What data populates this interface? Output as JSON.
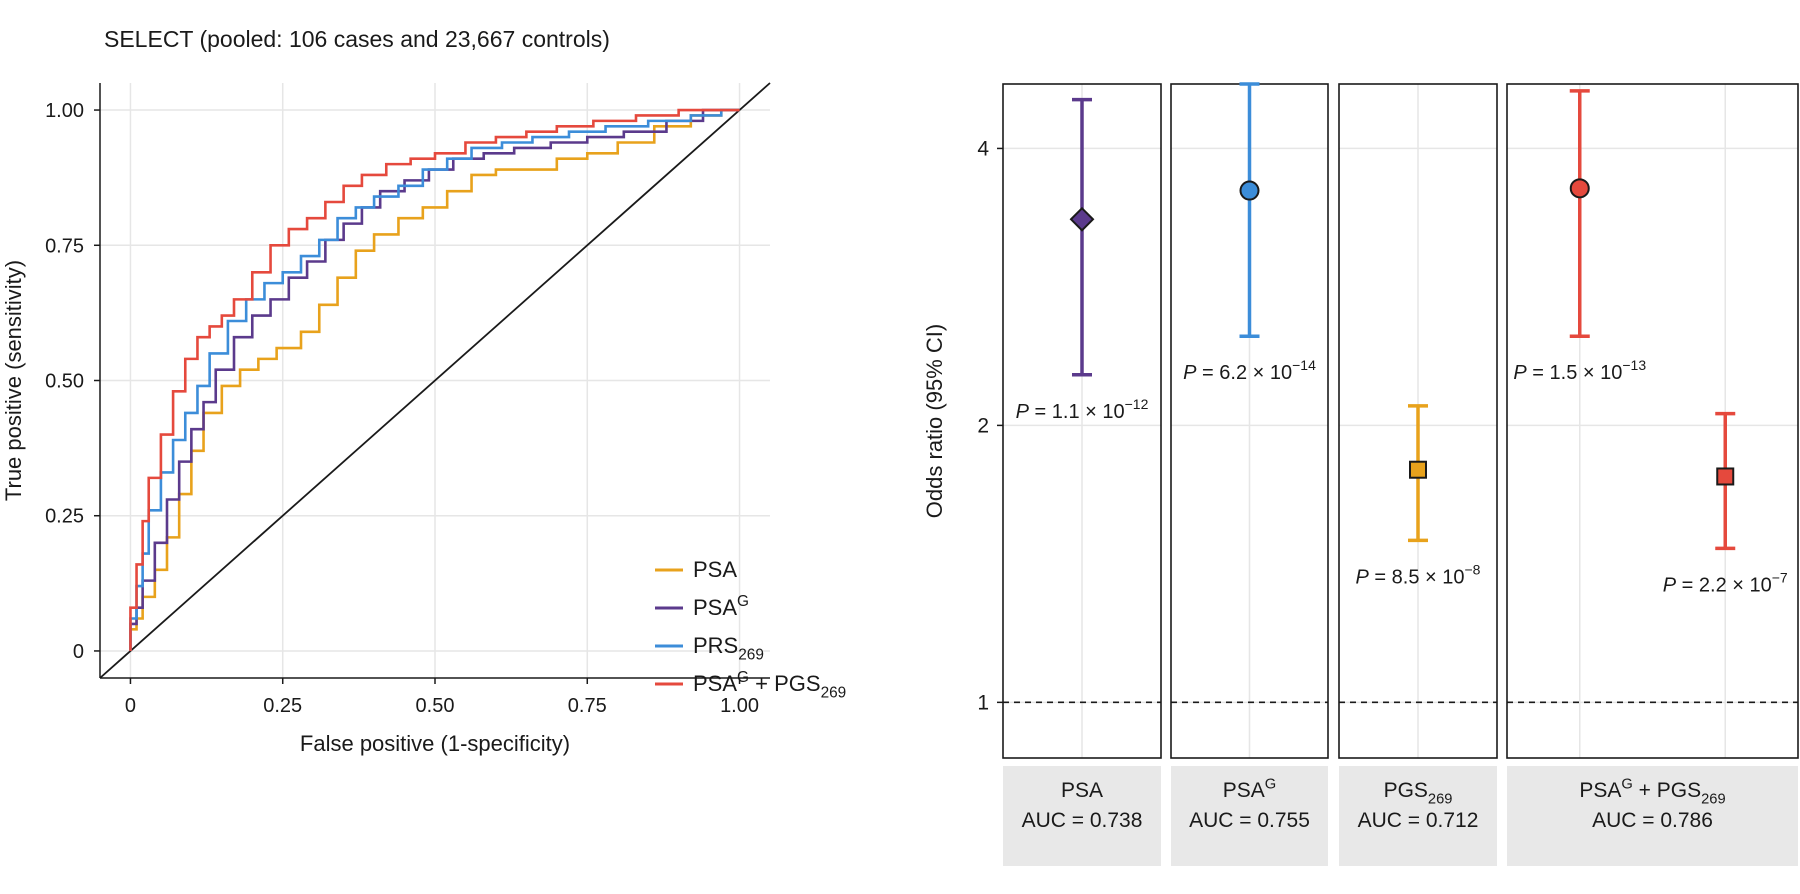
{
  "chart_data": [
    {
      "type": "line",
      "subtype": "roc",
      "title": "SELECT (pooled: 106 cases and 23,667 controls)",
      "xlabel": "False positive (1-specificity)",
      "ylabel": "True positive (sensitivity)",
      "xlim": [
        -0.05,
        1.05
      ],
      "ylim": [
        -0.05,
        1.05
      ],
      "xticks": [
        0,
        0.25,
        0.5,
        0.75,
        1.0
      ],
      "xtick_labels": [
        "0",
        "0.25",
        "0.50",
        "0.75",
        "1.00"
      ],
      "yticks": [
        0,
        0.25,
        0.5,
        0.75,
        1.0
      ],
      "ytick_labels": [
        "0",
        "0.25",
        "0.50",
        "0.75",
        "1.00"
      ],
      "grid": true,
      "legend_position": "bottom-right",
      "reference_line": {
        "x": [
          -0.05,
          1.05
        ],
        "y": [
          -0.05,
          1.05
        ],
        "color": "#1a1a1a"
      },
      "series": [
        {
          "name": "PSA",
          "label_base": "PSA",
          "label_sup": "",
          "label_sub": "",
          "label_tail": "",
          "color": "#E8A21C",
          "x": [
            0.0,
            0.01,
            0.02,
            0.04,
            0.06,
            0.08,
            0.1,
            0.12,
            0.15,
            0.18,
            0.21,
            0.24,
            0.28,
            0.31,
            0.34,
            0.37,
            0.4,
            0.44,
            0.48,
            0.52,
            0.56,
            0.6,
            0.65,
            0.7,
            0.75,
            0.8,
            0.86,
            0.92,
            0.97,
            1.0
          ],
          "y": [
            0.0,
            0.04,
            0.06,
            0.1,
            0.15,
            0.21,
            0.29,
            0.37,
            0.44,
            0.49,
            0.52,
            0.54,
            0.56,
            0.59,
            0.64,
            0.69,
            0.74,
            0.77,
            0.8,
            0.82,
            0.85,
            0.88,
            0.89,
            0.89,
            0.91,
            0.92,
            0.94,
            0.97,
            0.99,
            1.0
          ]
        },
        {
          "name": "PSAG",
          "label_base": "PSA",
          "label_sup": "G",
          "label_sub": "",
          "label_tail": "",
          "color": "#5B3A8C",
          "x": [
            0.0,
            0.01,
            0.02,
            0.04,
            0.06,
            0.08,
            0.1,
            0.12,
            0.14,
            0.17,
            0.2,
            0.23,
            0.26,
            0.29,
            0.32,
            0.35,
            0.38,
            0.41,
            0.45,
            0.49,
            0.53,
            0.58,
            0.63,
            0.69,
            0.75,
            0.81,
            0.88,
            0.94,
            1.0
          ],
          "y": [
            0.0,
            0.05,
            0.08,
            0.13,
            0.2,
            0.28,
            0.35,
            0.41,
            0.46,
            0.52,
            0.58,
            0.62,
            0.65,
            0.69,
            0.72,
            0.76,
            0.79,
            0.82,
            0.85,
            0.87,
            0.89,
            0.91,
            0.92,
            0.93,
            0.94,
            0.95,
            0.96,
            0.98,
            1.0
          ]
        },
        {
          "name": "PRS269",
          "label_base": "PRS",
          "label_sup": "",
          "label_sub": "269",
          "label_tail": "",
          "color": "#3C8DD9",
          "x": [
            0.0,
            0.01,
            0.02,
            0.03,
            0.05,
            0.07,
            0.09,
            0.11,
            0.13,
            0.16,
            0.19,
            0.22,
            0.25,
            0.28,
            0.31,
            0.34,
            0.37,
            0.4,
            0.44,
            0.48,
            0.52,
            0.56,
            0.61,
            0.66,
            0.72,
            0.78,
            0.85,
            0.92,
            0.97,
            1.0
          ],
          "y": [
            0.0,
            0.06,
            0.12,
            0.18,
            0.26,
            0.33,
            0.39,
            0.44,
            0.49,
            0.55,
            0.61,
            0.65,
            0.68,
            0.7,
            0.73,
            0.76,
            0.8,
            0.82,
            0.84,
            0.86,
            0.89,
            0.91,
            0.93,
            0.94,
            0.95,
            0.96,
            0.97,
            0.98,
            0.99,
            1.0
          ]
        },
        {
          "name": "PSAG + PGS269",
          "label_base": "PSA",
          "label_sup": "G",
          "label_sub": "",
          "label_tail": " + PGS",
          "label_tail_sub": "269",
          "color": "#E5493D",
          "x": [
            0.0,
            0.01,
            0.02,
            0.03,
            0.05,
            0.07,
            0.09,
            0.11,
            0.13,
            0.15,
            0.17,
            0.2,
            0.23,
            0.26,
            0.29,
            0.32,
            0.35,
            0.38,
            0.42,
            0.46,
            0.5,
            0.55,
            0.6,
            0.65,
            0.7,
            0.76,
            0.83,
            0.9,
            0.96,
            1.0
          ],
          "y": [
            0.0,
            0.08,
            0.16,
            0.24,
            0.32,
            0.4,
            0.48,
            0.54,
            0.58,
            0.6,
            0.62,
            0.65,
            0.7,
            0.75,
            0.78,
            0.8,
            0.83,
            0.86,
            0.88,
            0.9,
            0.91,
            0.92,
            0.94,
            0.95,
            0.96,
            0.97,
            0.98,
            0.99,
            1.0,
            1.0
          ]
        }
      ]
    },
    {
      "type": "forest",
      "ylabel": "Odds ratio (95% CI)",
      "yscale": "log2",
      "ylim": [
        0.87,
        4.7
      ],
      "yticks": [
        1,
        2,
        4
      ],
      "ytick_labels": [
        "1",
        "2",
        "4"
      ],
      "reference_line": {
        "value": 1,
        "style": "dashed"
      },
      "panels": [
        {
          "name": "PSA",
          "label_base": "PSA",
          "label_sup": "",
          "label_sub": "",
          "label_tail": "",
          "auc": "AUC = 0.738",
          "estimates": [
            {
              "or": 3.35,
              "lower": 2.27,
              "upper": 4.52,
              "color": "#5B3A8C",
              "marker": "diamond",
              "p_coef": "1.1",
              "p_exp": "−12",
              "x_offset": 0
            }
          ]
        },
        {
          "name": "PSAG",
          "label_base": "PSA",
          "label_sup": "G",
          "label_sub": "",
          "label_tail": "",
          "auc": "AUC = 0.755",
          "estimates": [
            {
              "or": 3.6,
              "lower": 2.5,
              "upper": 4.7,
              "color": "#3C8DD9",
              "marker": "circle",
              "p_coef": "6.2",
              "p_exp": "−14",
              "x_offset": 0
            }
          ]
        },
        {
          "name": "PGS269",
          "label_base": "PGS",
          "label_sup": "",
          "label_sub": "269",
          "label_tail": "",
          "auc": "AUC = 0.712",
          "estimates": [
            {
              "or": 1.79,
              "lower": 1.5,
              "upper": 2.1,
              "color": "#E8A21C",
              "marker": "square",
              "p_coef": "8.5",
              "p_exp": "−8",
              "x_offset": 0
            }
          ]
        },
        {
          "name": "PSAG + PGS269",
          "label_base": "PSA",
          "label_sup": "G",
          "label_sub": "",
          "label_tail": " + PGS",
          "label_tail_sub": "269",
          "auc": "AUC = 0.786",
          "estimates": [
            {
              "or": 3.62,
              "lower": 2.5,
              "upper": 4.62,
              "color": "#E5493D",
              "marker": "circle",
              "p_coef": "1.5",
              "p_exp": "−13",
              "x_offset": -1
            },
            {
              "or": 1.76,
              "lower": 1.47,
              "upper": 2.06,
              "color": "#E5493D",
              "marker": "square",
              "p_coef": "2.2",
              "p_exp": "−7",
              "x_offset": 1
            }
          ]
        }
      ]
    }
  ]
}
